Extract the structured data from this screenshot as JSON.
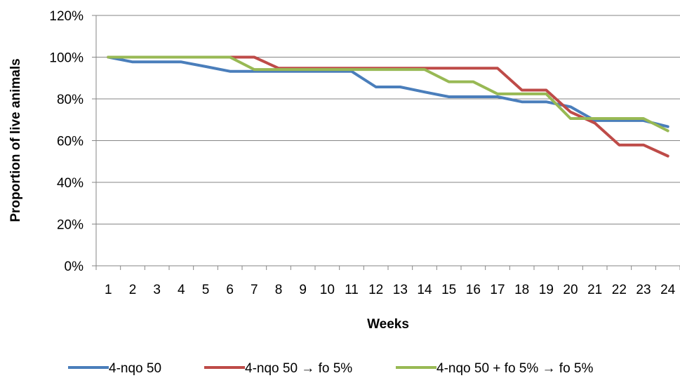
{
  "chart_data": {
    "type": "line",
    "xlabel": "Weeks",
    "ylabel": "Proportion of live animals",
    "categories": [
      "1",
      "2",
      "3",
      "4",
      "5",
      "6",
      "7",
      "8",
      "9",
      "10",
      "11",
      "12",
      "13",
      "14",
      "15",
      "16",
      "17",
      "18",
      "19",
      "20",
      "21",
      "22",
      "23",
      "24"
    ],
    "ylim": [
      0,
      120
    ],
    "yticks": [
      "0%",
      "20%",
      "40%",
      "60%",
      "80%",
      "100%",
      "120%"
    ],
    "grid": true,
    "legend_position": "bottom",
    "series": [
      {
        "name": "4-nqo 50",
        "color": "#4A7EBB",
        "values": [
          100,
          97.7,
          97.7,
          97.7,
          95.5,
          93.2,
          93.2,
          93.2,
          93.2,
          93.2,
          93.2,
          85.7,
          85.7,
          83.3,
          81.0,
          81.0,
          81.0,
          78.6,
          78.6,
          76.2,
          69.6,
          69.6,
          69.6,
          66.7
        ]
      },
      {
        "name": "4-nqo 50 → fo 5%",
        "color": "#BE4B48",
        "values": [
          100,
          100,
          100,
          100,
          100,
          100,
          100,
          94.7,
          94.7,
          94.7,
          94.7,
          94.7,
          94.7,
          94.7,
          94.7,
          94.7,
          94.7,
          84.2,
          84.2,
          73.7,
          68.4,
          57.9,
          57.9,
          52.6
        ]
      },
      {
        "name": "4-nqo 50 + fo 5% → fo 5%",
        "color": "#98B954",
        "values": [
          100,
          100,
          100,
          100,
          100,
          100,
          94.1,
          94.1,
          94.1,
          94.1,
          94.1,
          94.1,
          94.1,
          94.1,
          88.2,
          88.2,
          82.4,
          82.4,
          82.4,
          70.6,
          70.6,
          70.6,
          70.6,
          64.7
        ]
      }
    ]
  }
}
